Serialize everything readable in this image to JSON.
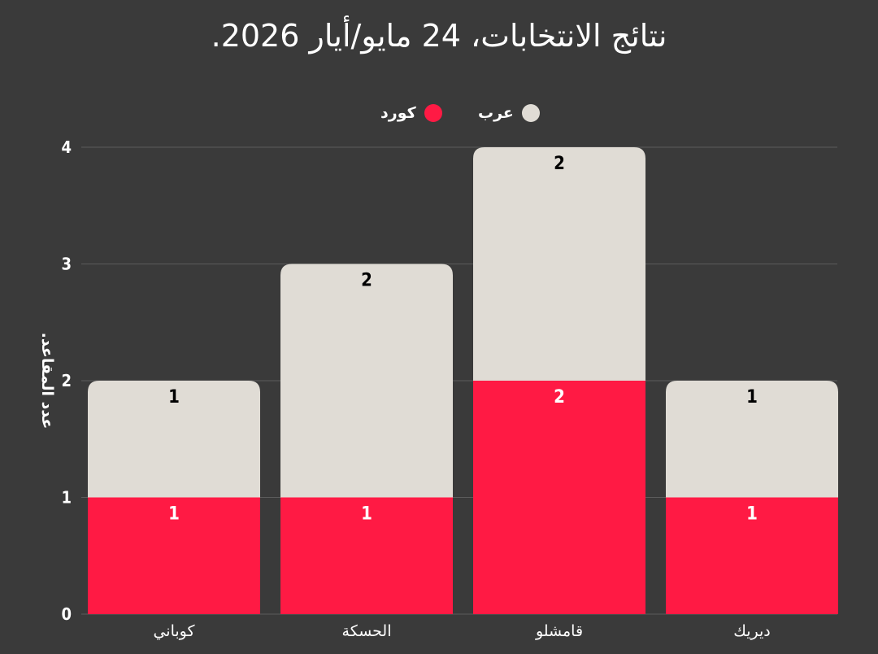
{
  "title": "نتائج الانتخابات، 24 مايو/أيار 2026.",
  "chart_data": {
    "type": "bar",
    "stacked": true,
    "title": "نتائج الانتخابات، 24 مايو/أيار 2026.",
    "ylabel": "عدد المقاعد.",
    "xlabel": "",
    "ylim": [
      0,
      4
    ],
    "yticks": [
      0,
      1,
      2,
      3,
      4
    ],
    "grid": true,
    "legend_position": "top",
    "categories": [
      "كوباني",
      "الحسكة",
      "قامشلو",
      "ديريك"
    ],
    "series": [
      {
        "name": "كورد",
        "color": "#ff1a44",
        "values": [
          1,
          1,
          2,
          1
        ]
      },
      {
        "name": "عرب",
        "color": "#e0dcd5",
        "values": [
          1,
          2,
          2,
          1
        ]
      }
    ]
  }
}
